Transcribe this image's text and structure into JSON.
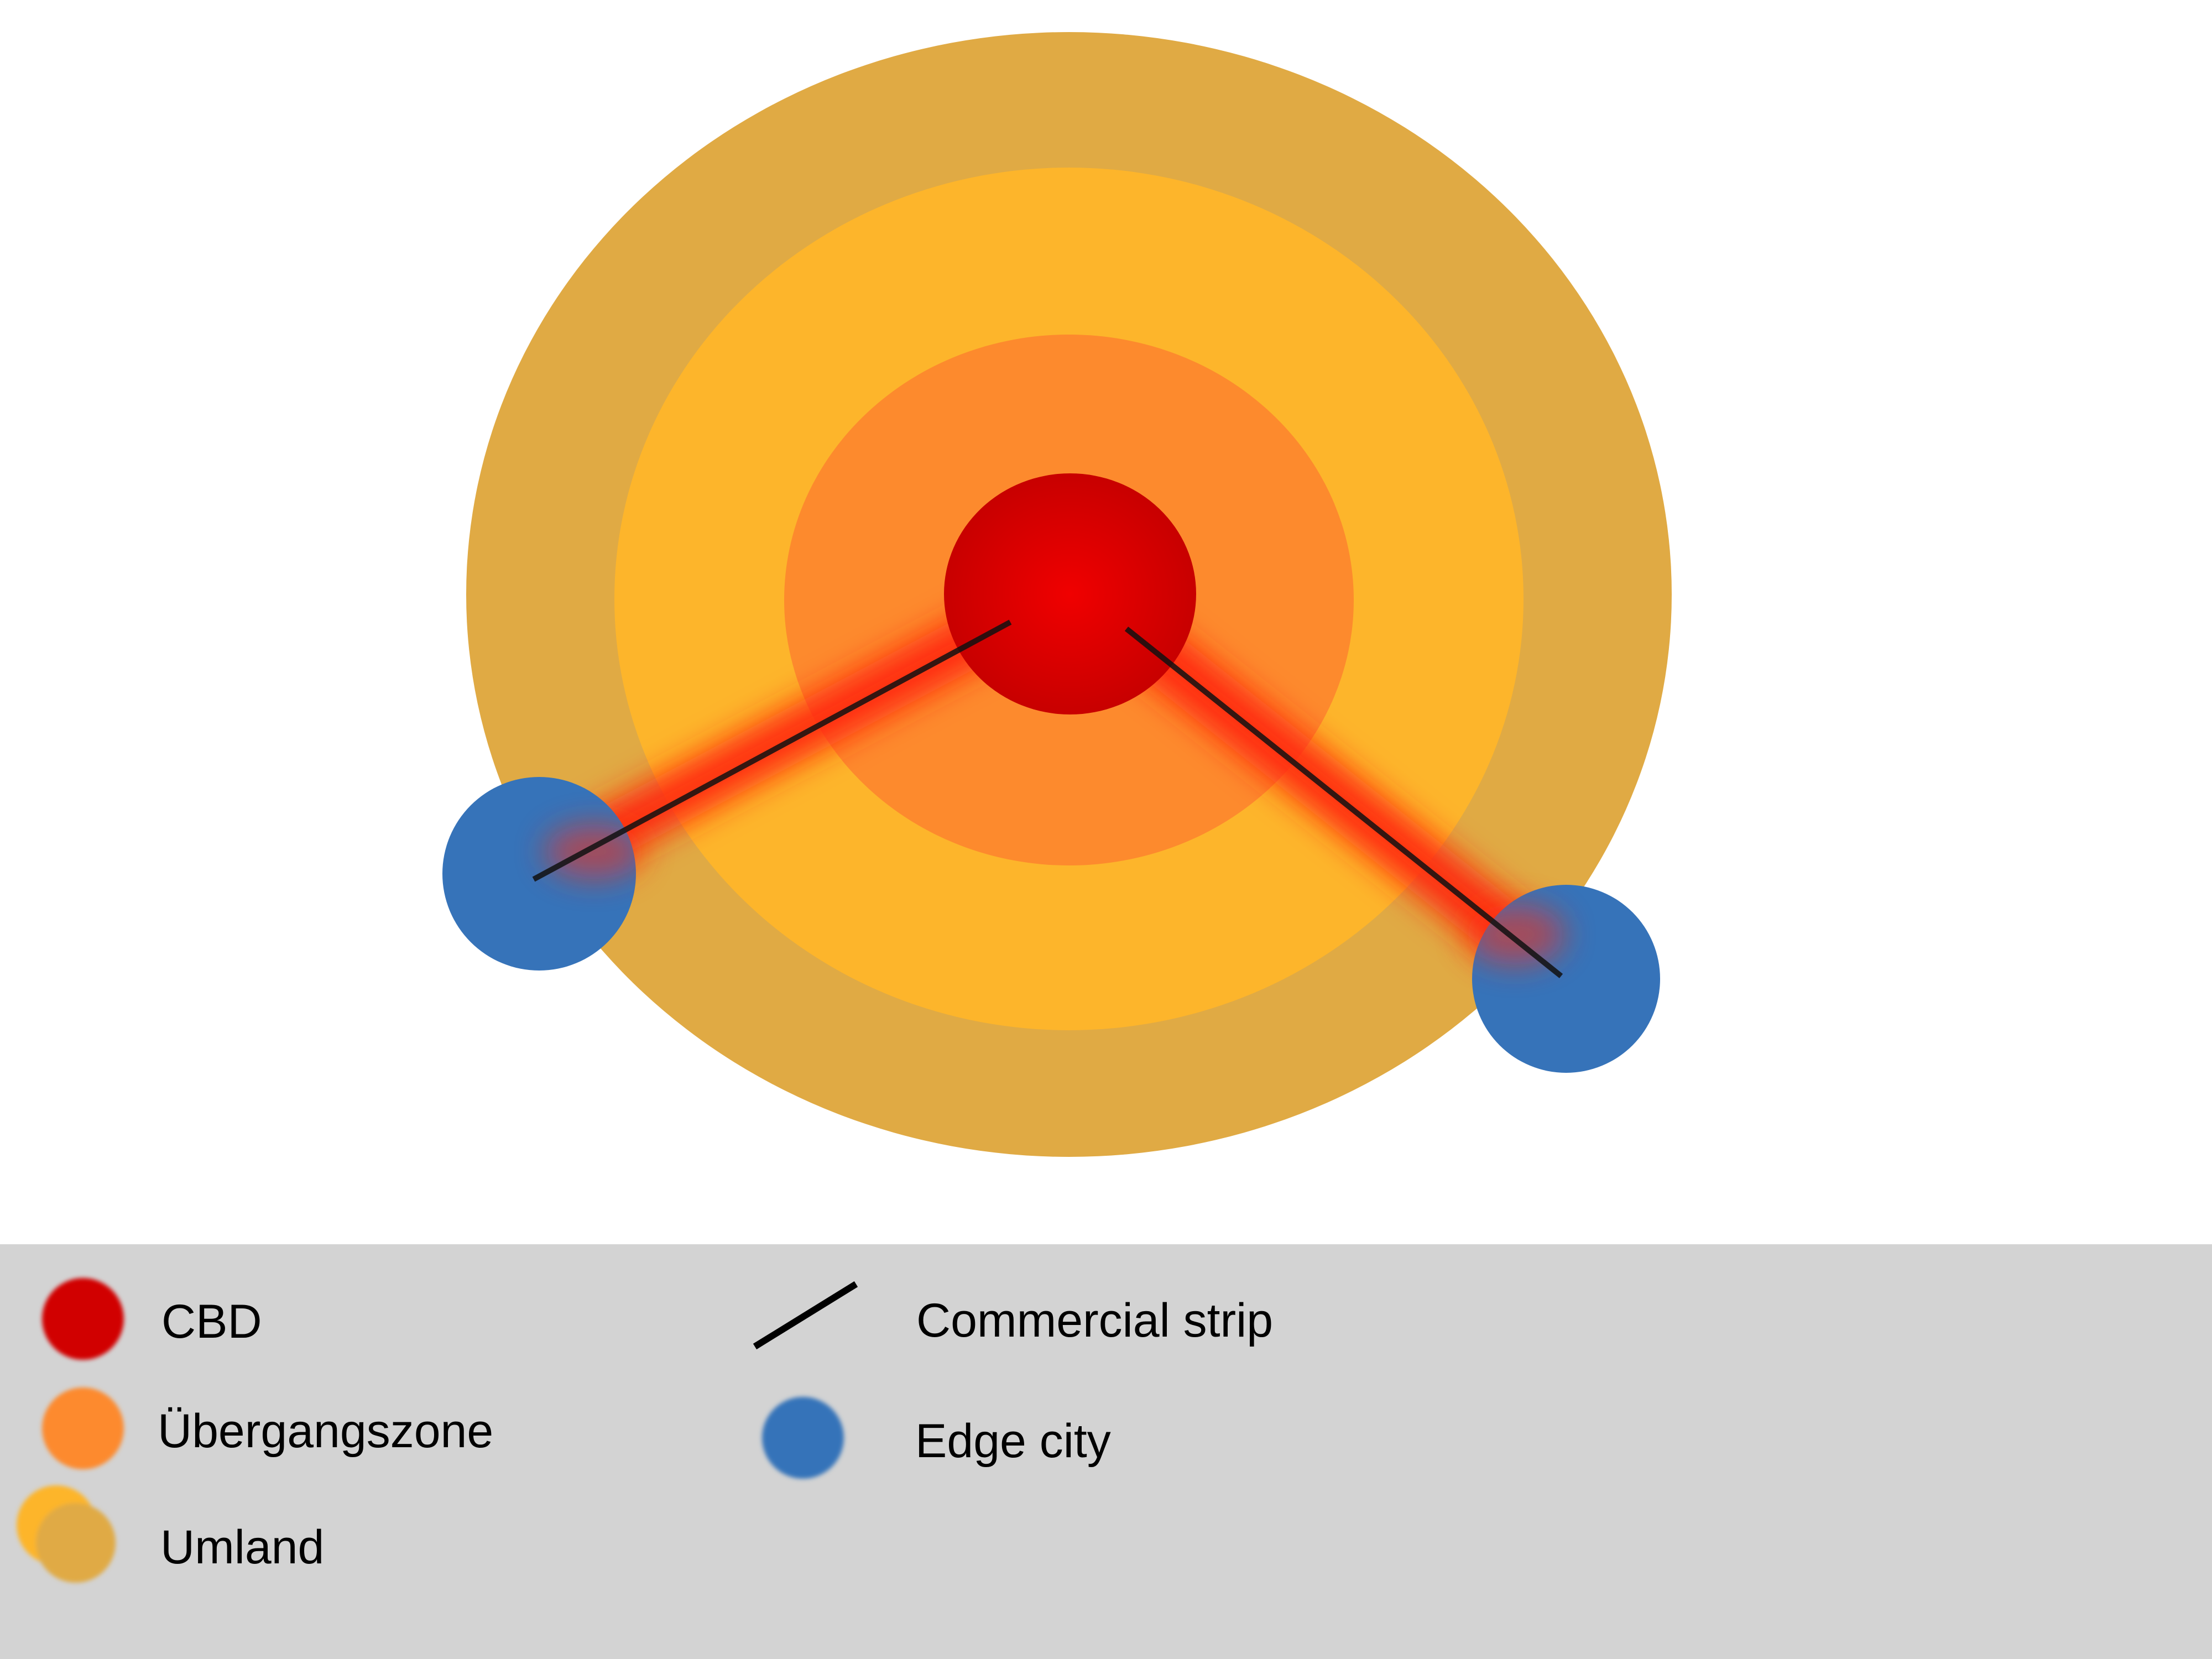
{
  "colors": {
    "background": "#ffffff",
    "legend_background": "#d3d3d3",
    "cbd": "#d10000",
    "uebergangszone": "#fd8a2d",
    "inner_ring": "#fdb52b",
    "umland": "#e0aa44",
    "edge_city": "#3673b9",
    "strip_glow": "#ff2a0f",
    "strip_line": "#111111"
  },
  "legend": {
    "items": [
      {
        "key": "cbd",
        "label": "CBD",
        "symbol": "red-circle-icon"
      },
      {
        "key": "uebergangszone",
        "label": "Übergangszone",
        "symbol": "orange-circle-icon"
      },
      {
        "key": "umland",
        "label": "Umland",
        "symbol": "double-circle-icon"
      },
      {
        "key": "commercial_strip",
        "label": "Commercial strip",
        "symbol": "diagonal-line-icon"
      },
      {
        "key": "edge_city",
        "label": "Edge city",
        "symbol": "blue-circle-icon"
      }
    ]
  }
}
